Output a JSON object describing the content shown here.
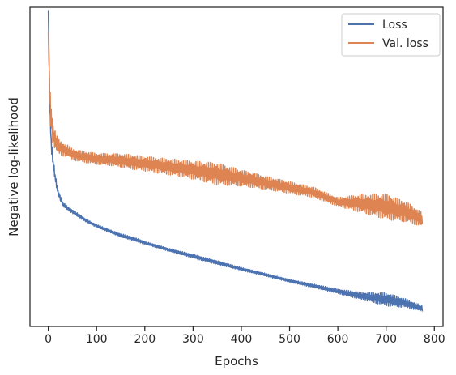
{
  "chart_data": {
    "type": "line",
    "title": "",
    "xlabel": "Epochs",
    "ylabel": "Negative log-likelihood",
    "xlim": [
      -38,
      818
    ],
    "ylim": [
      0,
      1
    ],
    "x_ticks": [
      0,
      100,
      200,
      300,
      400,
      500,
      600,
      700,
      800
    ],
    "y_ticks_labeled": false,
    "grid": false,
    "legend_position": "top-right",
    "series": [
      {
        "name": "Loss",
        "color": "#4c72b0",
        "x": [
          0,
          3,
          6,
          10,
          15,
          20,
          30,
          40,
          50,
          60,
          80,
          100,
          125,
          150,
          175,
          200,
          250,
          300,
          350,
          400,
          450,
          500,
          550,
          600,
          650,
          700,
          740,
          775
        ],
        "y": [
          0.991,
          0.69,
          0.575,
          0.51,
          0.46,
          0.42,
          0.383,
          0.37,
          0.36,
          0.35,
          0.33,
          0.315,
          0.3,
          0.285,
          0.275,
          0.262,
          0.24,
          0.22,
          0.2,
          0.18,
          0.162,
          0.143,
          0.127,
          0.11,
          0.095,
          0.085,
          0.073,
          0.056
        ],
        "noise": [
          0,
          0.01,
          0.02,
          0.015,
          0.01,
          0.008,
          0.006,
          0.005,
          0.005,
          0.005,
          0.004,
          0.004,
          0.004,
          0.005,
          0.005,
          0.004,
          0.004,
          0.005,
          0.005,
          0.004,
          0.004,
          0.004,
          0.005,
          0.006,
          0.01,
          0.018,
          0.012,
          0.008
        ]
      },
      {
        "name": "Val. loss",
        "color": "#dd8452",
        "x": [
          0,
          3,
          6,
          10,
          15,
          20,
          30,
          40,
          50,
          60,
          80,
          100,
          125,
          150,
          175,
          200,
          250,
          300,
          350,
          400,
          450,
          500,
          550,
          600,
          650,
          700,
          740,
          775
        ],
        "y": [
          0.921,
          0.72,
          0.65,
          0.6,
          0.58,
          0.565,
          0.555,
          0.55,
          0.54,
          0.535,
          0.53,
          0.525,
          0.523,
          0.52,
          0.515,
          0.51,
          0.5,
          0.49,
          0.478,
          0.465,
          0.45,
          0.435,
          0.42,
          0.39,
          0.385,
          0.375,
          0.36,
          0.335
        ],
        "noise": [
          0,
          0.04,
          0.04,
          0.03,
          0.025,
          0.02,
          0.018,
          0.016,
          0.015,
          0.015,
          0.015,
          0.015,
          0.016,
          0.018,
          0.02,
          0.02,
          0.022,
          0.025,
          0.03,
          0.022,
          0.018,
          0.016,
          0.014,
          0.012,
          0.025,
          0.035,
          0.028,
          0.02
        ]
      }
    ]
  }
}
